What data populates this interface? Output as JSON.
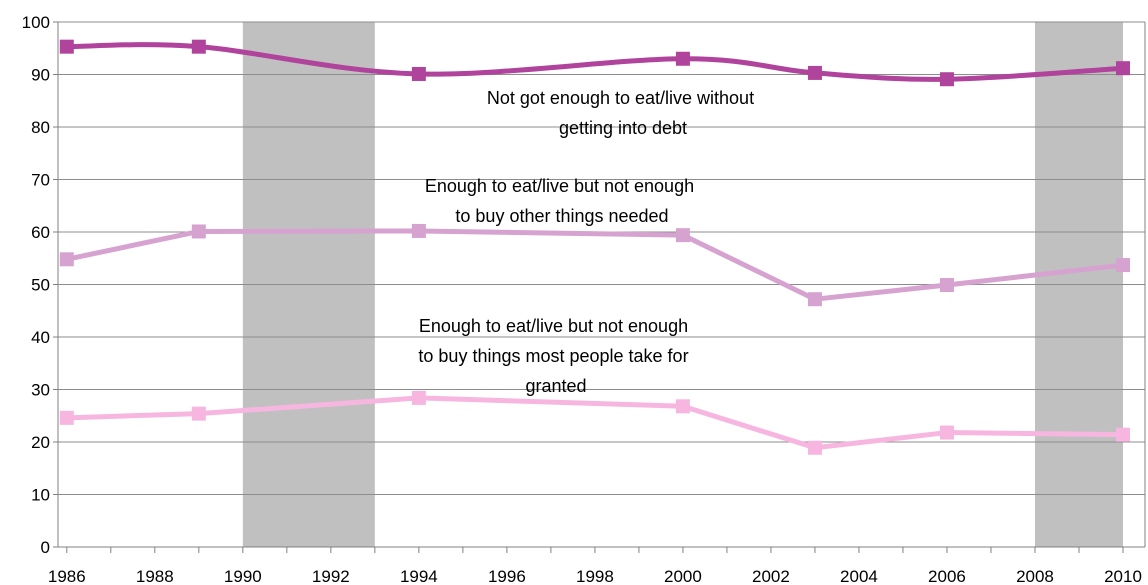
{
  "chart_data": {
    "type": "line",
    "xlim": [
      1985.8,
      2010.5
    ],
    "ylim": [
      0,
      100
    ],
    "grid": true,
    "legend": "none",
    "x_ticks": [
      "1986",
      "1988",
      "1990",
      "1992",
      "1994",
      "1996",
      "1998",
      "2000",
      "2002",
      "2004",
      "2006",
      "2008",
      "2010"
    ],
    "y_ticks": [
      "0",
      "10",
      "20",
      "30",
      "40",
      "50",
      "60",
      "70",
      "80",
      "90",
      "100"
    ],
    "shaded_periods": [
      [
        1990,
        1993
      ],
      [
        2008,
        2010
      ]
    ],
    "series": [
      {
        "color": "#b0439c",
        "smooth": true,
        "x": [
          1986,
          1989,
          1994,
          2000,
          2003,
          2006,
          2010
        ],
        "values": [
          95.3,
          95.3,
          90.1,
          93.0,
          90.3,
          89.1,
          91.2
        ]
      },
      {
        "color": "#d6a2d0",
        "smooth": false,
        "x": [
          1986,
          1989,
          1994,
          2000,
          2003,
          2006,
          2010
        ],
        "values": [
          54.8,
          60.1,
          60.2,
          59.4,
          47.2,
          49.9,
          53.7
        ]
      },
      {
        "color": "#f7b6df",
        "smooth": false,
        "x": [
          1986,
          1989,
          1994,
          2000,
          2003,
          2006,
          2010
        ],
        "values": [
          24.6,
          25.4,
          28.4,
          26.8,
          18.9,
          21.8,
          21.4
        ]
      }
    ],
    "annotations": [
      {
        "lines": [
          "Not got enough to eat/live without",
          "getting into debt"
        ]
      },
      {
        "lines": [
          "Enough to eat/live but not enough",
          "to buy other things needed"
        ]
      },
      {
        "lines": [
          "Enough to eat/live but not enough",
          "to buy things most people take for",
          "granted"
        ]
      }
    ]
  }
}
